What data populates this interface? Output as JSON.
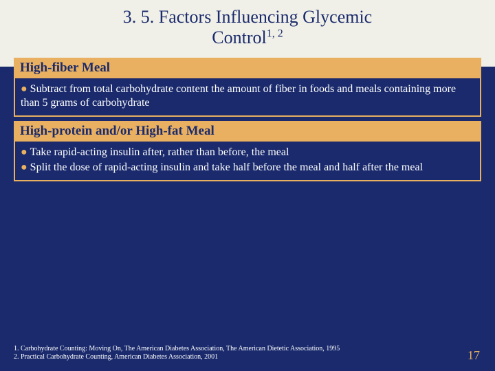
{
  "colors": {
    "background_top": "#f0f0e8",
    "background_bottom": "#1a2a6c",
    "accent": "#e8b060",
    "text_light": "#ffffff",
    "text_dark": "#1a2a6c"
  },
  "typography": {
    "title_fontsize": 26,
    "header_fontsize": 19,
    "body_fontsize": 16,
    "footnote_fontsize": 10,
    "pagenum_fontsize": 18,
    "font_family": "Times New Roman"
  },
  "title": {
    "line1": "3. 5. Factors Influencing Glycemic",
    "line2_prefix": "Control",
    "line2_sup": "1, 2"
  },
  "sections": [
    {
      "header": "High-fiber Meal",
      "bullets": [
        "Subtract from total carbohydrate content the amount of fiber in foods and meals containing more than 5 grams of carbohydrate"
      ]
    },
    {
      "header": "High-protein and/or High-fat Meal",
      "bullets": [
        "Take rapid-acting insulin after, rather than before, the meal",
        "Split the dose of rapid-acting insulin and take half before the meal and half after the meal"
      ]
    }
  ],
  "footnotes": [
    "1. Carbohydrate Counting: Moving On, The American Diabetes Association, The American Dietetic Association, 1995",
    "2. Practical Carbohydrate Counting, American Diabetes Association, 2001"
  ],
  "page_number": "17"
}
